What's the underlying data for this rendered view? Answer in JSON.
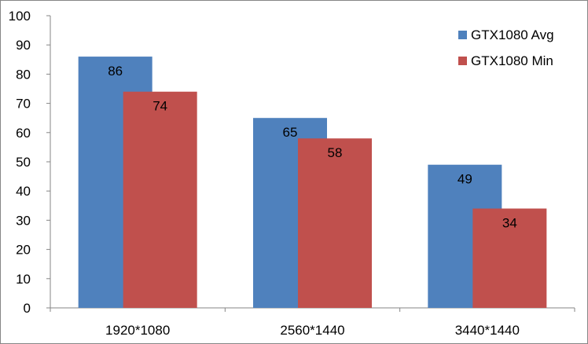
{
  "chart_data": {
    "type": "bar",
    "categories": [
      "1920*1080",
      "2560*1440",
      "3440*1440"
    ],
    "series": [
      {
        "name": "GTX1080 Avg",
        "values": [
          86,
          65,
          49
        ],
        "color": "#4f81bd"
      },
      {
        "name": "GTX1080 Min",
        "values": [
          74,
          58,
          34
        ],
        "color": "#c0504d"
      }
    ],
    "ylim": [
      0,
      100
    ],
    "yticks": [
      0,
      10,
      20,
      30,
      40,
      50,
      60,
      70,
      80,
      90,
      100
    ],
    "grid": false,
    "legend": "top-right",
    "data_labels": true
  }
}
